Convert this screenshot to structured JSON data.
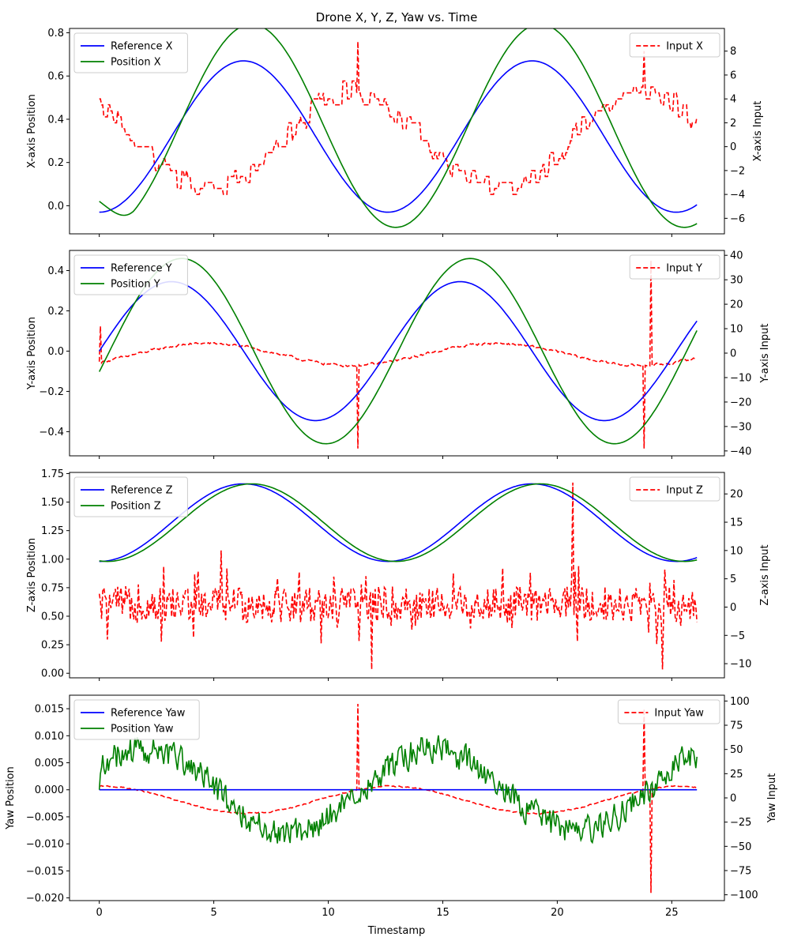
{
  "figure_title": "Drone X, Y, Z, Yaw vs. Time",
  "x_axis_label": "Timestamp",
  "x_ticks": [
    0,
    5,
    10,
    15,
    20,
    25
  ],
  "x_range": [
    -1.3,
    27.3
  ],
  "chart_data": [
    {
      "type": "line",
      "ylabel_left": "X-axis Position",
      "ylabel_right": "X-axis Input",
      "ylim_left": [
        -0.13,
        0.82
      ],
      "ylim_right": [
        -7.3,
        9.9
      ],
      "yticks_left": [
        "0.0",
        "0.2",
        "0.4",
        "0.6",
        "0.8"
      ],
      "yticks_right": [
        "−6",
        "−4",
        "−2",
        "0",
        "2",
        "4",
        "6",
        "8"
      ],
      "legend_left": [
        "Reference X",
        "Position X"
      ],
      "legend_right": [
        "Input X"
      ],
      "legend_left_placement": "upper-left",
      "legend_right_placement": "upper-right",
      "ref": {
        "mean": 0.32,
        "amp": 0.35,
        "period": 12.6,
        "shape": "neg-cos"
      },
      "pos": {
        "mean": 0.37,
        "amp": 0.47,
        "period": 12.6,
        "lag": 0.35,
        "start": 0.02,
        "shape": "neg-cos"
      },
      "input": {
        "shape": "step-noise",
        "mean": 0.5,
        "amp": 4.0,
        "period": 12.6,
        "phase": 2.3,
        "noise": 0.9,
        "spikes": [
          [
            11.3,
            8.8
          ],
          [
            23.8,
            8.0
          ]
        ]
      },
      "colors": {
        "reference": "#0000ff",
        "position": "#008000",
        "input": "#ff0000"
      }
    },
    {
      "type": "line",
      "ylabel_left": "Y-axis Position",
      "ylabel_right": "Y-axis Input",
      "ylim_left": [
        -0.52,
        0.5
      ],
      "ylim_right": [
        -42,
        42
      ],
      "yticks_left": [
        "−0.4",
        "−0.2",
        "0.0",
        "0.2",
        "0.4"
      ],
      "yticks_right": [
        "−40",
        "−30",
        "−20",
        "−10",
        "0",
        "10",
        "20",
        "30",
        "40"
      ],
      "legend_left": [
        "Reference Y",
        "Position Y"
      ],
      "legend_right": [
        "Input Y"
      ],
      "legend_left_placement": "upper-left",
      "legend_right_placement": "upper-right",
      "ref": {
        "amp": 0.345,
        "period": 12.6,
        "shape": "sin"
      },
      "pos": {
        "amp": 0.46,
        "period": 12.6,
        "lag": 0.45,
        "shape": "sin"
      },
      "input": {
        "shape": "smooth-noise",
        "mean": -0.5,
        "amp": 4.5,
        "period": 12.6,
        "phase": 5.5,
        "noise": 1.0,
        "spikes": [
          [
            0.0,
            11.0
          ],
          [
            11.3,
            -39.0
          ],
          [
            23.8,
            -39.0
          ],
          [
            24.1,
            38.0
          ]
        ]
      },
      "colors": {
        "reference": "#0000ff",
        "position": "#008000",
        "input": "#ff0000"
      }
    },
    {
      "type": "line",
      "ylabel_left": "Z-axis Position",
      "ylabel_right": "Z-axis Input",
      "ylim_left": [
        -0.04,
        1.76
      ],
      "ylim_right": [
        -12.5,
        23.8
      ],
      "yticks_left": [
        "0.00",
        "0.25",
        "0.50",
        "0.75",
        "1.00",
        "1.25",
        "1.50",
        "1.75"
      ],
      "yticks_right": [
        "−10",
        "−5",
        "0",
        "5",
        "10",
        "15",
        "20"
      ],
      "legend_left": [
        "Reference Z",
        "Position Z"
      ],
      "legend_right": [
        "Input Z"
      ],
      "legend_left_placement": "upper-left",
      "legend_right_placement": "upper-right",
      "ref": {
        "mean": 1.32,
        "amp": 0.34,
        "period": 12.6,
        "shape": "neg-cos"
      },
      "pos": {
        "mean": 1.32,
        "amp": 0.34,
        "period": 12.6,
        "lag": 0.35,
        "shape": "neg-cos"
      },
      "input": {
        "shape": "noise",
        "mean": 0.5,
        "amp": 0.0,
        "period": 12.6,
        "phase": 0,
        "noise": 3.2,
        "spikes": [
          [
            5.3,
            10.0
          ],
          [
            11.9,
            -11.0
          ],
          [
            20.7,
            22.0
          ],
          [
            24.6,
            -11.0
          ]
        ]
      },
      "colors": {
        "reference": "#0000ff",
        "position": "#008000",
        "input": "#ff0000"
      }
    },
    {
      "type": "line",
      "ylabel_left": "Yaw Position",
      "ylabel_right": "Yaw Input",
      "ylim_left": [
        -0.0205,
        0.0175
      ],
      "ylim_right": [
        -106,
        106
      ],
      "yticks_left": [
        "−0.020",
        "−0.015",
        "−0.010",
        "−0.005",
        "0.000",
        "0.005",
        "0.010",
        "0.015"
      ],
      "yticks_right": [
        "−100",
        "−75",
        "−50",
        "−25",
        "0",
        "25",
        "50",
        "75",
        "100"
      ],
      "legend_left": [
        "Reference Yaw",
        "Position Yaw"
      ],
      "legend_right": [
        "Input Yaw"
      ],
      "legend_left_placement": "upper-left",
      "legend_right_placement": "upper-right",
      "ref": {
        "mean": 0.0,
        "amp": 0.0,
        "period": 12.6,
        "shape": "flat"
      },
      "pos": {
        "mean": 0.0,
        "amp": 0.0075,
        "period": 12.6,
        "lag": -1.2,
        "noise": 0.0035,
        "shape": "sin-noise"
      },
      "input": {
        "shape": "smooth-noise",
        "mean": -2.0,
        "amp": 14.0,
        "period": 12.6,
        "phase": 1.5,
        "noise": 1.2,
        "spikes": [
          [
            11.3,
            97.0
          ],
          [
            23.8,
            92.0
          ],
          [
            24.1,
            -98.0
          ]
        ]
      },
      "colors": {
        "reference": "#0000ff",
        "position": "#008000",
        "input": "#ff0000"
      }
    }
  ]
}
